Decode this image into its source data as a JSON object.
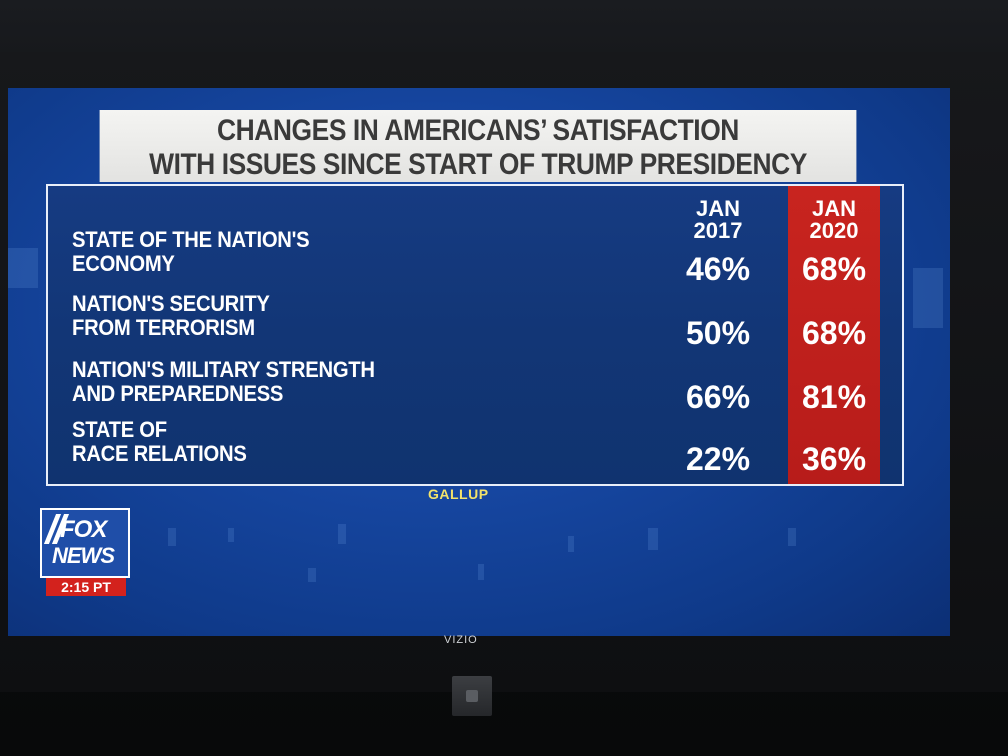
{
  "title": {
    "line1": "CHANGES IN AMERICANS’ SATISFACTION",
    "line2": "WITH ISSUES SINCE START OF TRUMP PRESIDENCY"
  },
  "columns": [
    {
      "line1": "JAN",
      "line2": "2017"
    },
    {
      "line1": "JAN",
      "line2": "2020"
    }
  ],
  "rows": [
    {
      "label1": "STATE OF THE NATION'S",
      "label2": "ECONOMY",
      "v2017": "46%",
      "v2020": "68%"
    },
    {
      "label1": "NATION'S SECURITY",
      "label2": "FROM TERRORISM",
      "v2017": "50%",
      "v2020": "68%"
    },
    {
      "label1": "NATION'S MILITARY STRENGTH",
      "label2": "AND PREPAREDNESS",
      "v2017": "66%",
      "v2020": "81%"
    },
    {
      "label1": "STATE OF",
      "label2": "RACE RELATIONS",
      "v2017": "22%",
      "v2020": "36%"
    }
  ],
  "source": "GALLUP",
  "network": {
    "line1": "FOX",
    "line2": "NEWS",
    "time": "2:15 PT"
  },
  "tv_brand": "VIZIO",
  "colors": {
    "background_blue": "#1646a0",
    "highlight_red": "#c8241f",
    "source_yellow": "#f2e36a"
  }
}
